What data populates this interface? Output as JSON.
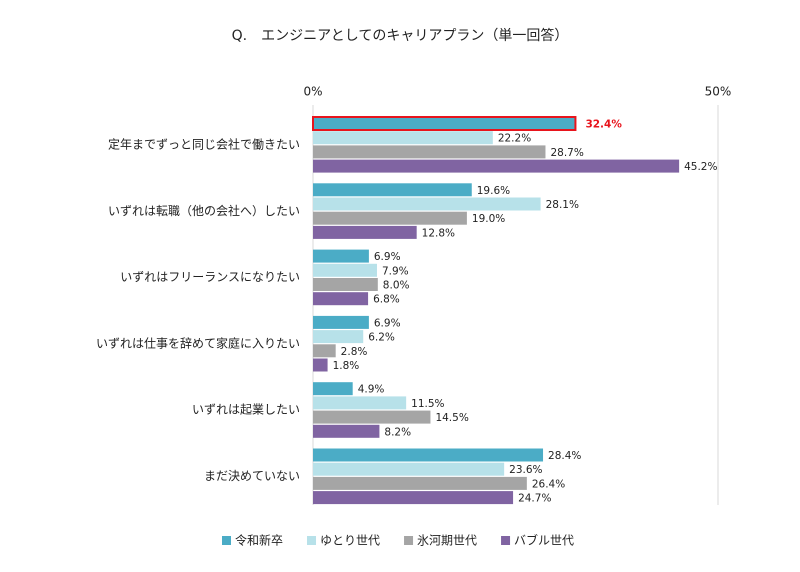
{
  "chart_data": {
    "type": "hbar",
    "title": "Q.　エンジニアとしてのキャリアプラン（単一回答）",
    "categories": [
      "定年までずっと同じ会社で働きたい",
      "いずれは転職（他の会社へ）したい",
      "いずれはフリーランスになりたい",
      "いずれは仕事を辞めて家庭に入りたい",
      "いずれは起業したい",
      "まだ決めていない"
    ],
    "series": [
      {
        "name": "令和新卒",
        "color": "#4bacc6",
        "values": [
          32.4,
          19.6,
          6.9,
          6.9,
          4.9,
          28.4
        ],
        "value_labels": [
          "32.4%",
          "19.6%",
          "6.9%",
          "6.9%",
          "4.9%",
          "28.4%"
        ]
      },
      {
        "name": "ゆとり世代",
        "color": "#b7e1e9",
        "values": [
          22.2,
          28.1,
          7.9,
          6.2,
          11.5,
          23.6
        ],
        "value_labels": [
          "22.2%",
          "28.1%",
          "7.9%",
          "6.2%",
          "11.5%",
          "23.6%"
        ]
      },
      {
        "name": "氷河期世代",
        "color": "#a5a5a5",
        "values": [
          28.7,
          19.0,
          8.0,
          2.8,
          14.5,
          26.4
        ],
        "value_labels": [
          "28.7%",
          "19.0%",
          "8.0%",
          "2.8%",
          "14.5%",
          "26.4%"
        ]
      },
      {
        "name": "バブル世代",
        "color": "#8064a2",
        "values": [
          45.2,
          12.8,
          6.8,
          1.8,
          8.2,
          24.7
        ],
        "value_labels": [
          "45.2%",
          "12.8%",
          "6.8%",
          "1.8%",
          "8.2%",
          "24.7%"
        ]
      }
    ],
    "xlim": [
      0,
      50
    ],
    "xticks": [
      {
        "value": 0,
        "label": "0%"
      },
      {
        "value": 50,
        "label": "50%"
      }
    ],
    "grid": true,
    "legend": "bottom",
    "highlight": {
      "series": 0,
      "index": 0,
      "color": "#e8141c"
    }
  }
}
